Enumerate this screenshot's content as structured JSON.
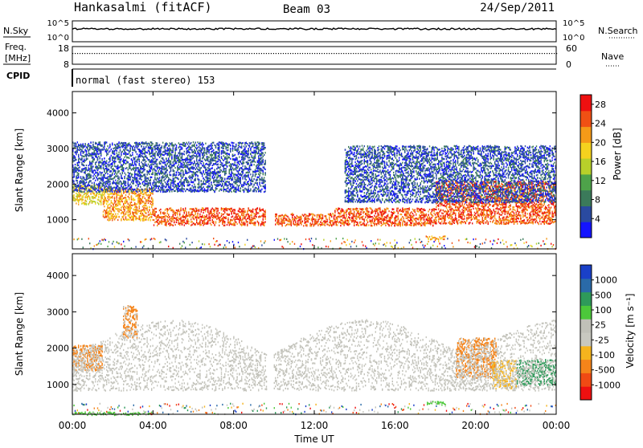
{
  "header": {
    "station": "Hankasalmi (fitACF)",
    "beam": "Beam 03",
    "date": "24/Sep/2011"
  },
  "noise_panel": {
    "left_label": "N.Sky",
    "left_ticks": [
      "10^5",
      "10^0"
    ],
    "right_label": "N.Search",
    "right_ticks": [
      "10^5",
      "10^0"
    ]
  },
  "freq_panel": {
    "left_label_line1": "Freq.",
    "left_label_line2": "[MHz]",
    "left_ticks": [
      "18",
      "8"
    ],
    "right_label": "Nave",
    "right_ticks": [
      "60",
      "0"
    ]
  },
  "cpid_panel": {
    "label": "CPID",
    "text": "normal (fast stereo) 153"
  },
  "colors": {
    "power_scale": [
      "#1414ff",
      "#2a4aa0",
      "#3b7a5a",
      "#4ea34a",
      "#b8d02a",
      "#f5d21e",
      "#f59a18",
      "#f05014",
      "#ee1010"
    ],
    "velocity_scale": [
      "#ee1010",
      "#f04a14",
      "#f5841a",
      "#f5b41e",
      "#c8c8c0",
      "#c0c0b8",
      "#4cc83a",
      "#2e9a5a",
      "#2a6aa8",
      "#1a40c8"
    ]
  },
  "chart_data": [
    {
      "type": "heatmap",
      "name": "power",
      "ylabel": "Slant Range [km]",
      "yticks": [
        1000,
        2000,
        3000,
        4000
      ],
      "ylim": [
        180,
        4600
      ],
      "xlim": [
        0,
        24
      ],
      "colorbar_label": "Power [dB]",
      "colorbar_ticks": [
        4,
        8,
        12,
        16,
        20,
        24,
        28
      ],
      "colorbar_range": [
        0,
        30
      ],
      "gap_hours": [
        9.65,
        9.95
      ],
      "bands": [
        {
          "t0": 0.0,
          "t1": 1.5,
          "r0": 1450,
          "r1": 2000,
          "level": 6
        },
        {
          "t0": 1.5,
          "t1": 4.0,
          "r0": 1000,
          "r1": 1900,
          "level": 7
        },
        {
          "t0": 4.0,
          "t1": 9.6,
          "r0": 860,
          "r1": 1350,
          "level": 8
        },
        {
          "t0": 10.0,
          "t1": 13.0,
          "r0": 850,
          "r1": 1200,
          "level": 8
        },
        {
          "t0": 13.0,
          "t1": 18.0,
          "r0": 850,
          "r1": 1350,
          "level": 8
        },
        {
          "t0": 18.0,
          "t1": 24.0,
          "r0": 900,
          "r1": 2100,
          "level": 8
        },
        {
          "t0": 0.0,
          "t1": 9.6,
          "r0": 1800,
          "r1": 3200,
          "level": 2
        },
        {
          "t0": 13.5,
          "t1": 24.0,
          "r0": 1500,
          "r1": 3100,
          "level": 2
        },
        {
          "t0": 17.5,
          "t1": 18.5,
          "r0": 470,
          "r1": 560,
          "level": 7
        }
      ]
    },
    {
      "type": "heatmap",
      "name": "velocity",
      "ylabel": "Slant Range [km]",
      "yticks": [
        1000,
        2000,
        3000,
        4000
      ],
      "ylim": [
        180,
        4600
      ],
      "xlim": [
        0,
        24
      ],
      "xlabel": "Time UT",
      "xticks": [
        "00:00",
        "04:00",
        "08:00",
        "12:00",
        "16:00",
        "20:00",
        "00:00"
      ],
      "xtick_hours": [
        0,
        4,
        8,
        12,
        16,
        20,
        24
      ],
      "colorbar_label": "Velocity [m s⁻¹]",
      "colorbar_ticks": [
        1000,
        500,
        100,
        25,
        -25,
        -100,
        -500,
        -1000
      ],
      "gap_hours": [
        9.65,
        9.95
      ],
      "bands": [
        {
          "t0": 0.0,
          "t1": 1.5,
          "r0": 1400,
          "r1": 2100,
          "level": 2
        },
        {
          "t0": 2.5,
          "t1": 3.2,
          "r0": 2300,
          "r1": 3200,
          "level": 2
        },
        {
          "t0": 19.0,
          "t1": 21.0,
          "r0": 1200,
          "r1": 2300,
          "level": 2
        },
        {
          "t0": 20.8,
          "t1": 22.0,
          "r0": 900,
          "r1": 1700,
          "level": 3
        },
        {
          "t0": 22.0,
          "t1": 24.0,
          "r0": 1000,
          "r1": 1700,
          "level": 7
        },
        {
          "t0": 17.5,
          "t1": 18.5,
          "r0": 470,
          "r1": 560,
          "level": 6
        },
        {
          "t0": 0.0,
          "t1": 4.0,
          "r0": 180,
          "r1": 260,
          "level": 6
        }
      ]
    }
  ]
}
